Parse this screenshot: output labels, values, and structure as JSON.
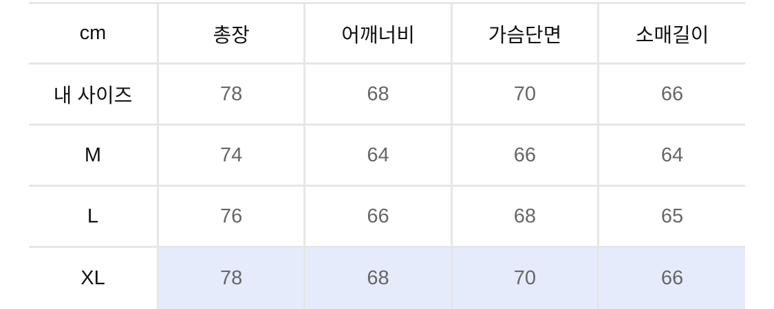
{
  "table": {
    "headers": [
      "cm",
      "총장",
      "어깨너비",
      "가슴단면",
      "소매길이"
    ],
    "rows": [
      {
        "label": "내 사이즈",
        "values": [
          "78",
          "68",
          "70",
          "66"
        ]
      },
      {
        "label": "M",
        "values": [
          "74",
          "64",
          "66",
          "64"
        ]
      },
      {
        "label": "L",
        "values": [
          "76",
          "66",
          "68",
          "65"
        ]
      },
      {
        "label": "XL",
        "values": [
          "78",
          "68",
          "70",
          "66"
        ],
        "highlighted": true
      }
    ],
    "highlight_color": "#e6ebfb"
  }
}
